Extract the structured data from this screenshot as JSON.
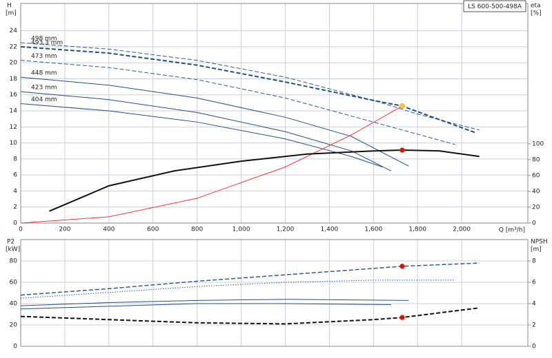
{
  "chart_data": [
    {
      "type": "line",
      "title": "LS 600-500-498A",
      "xlabel": "Q [m³/h]",
      "ylabel": "H",
      "yunit": "[m]",
      "y2label": "eta",
      "y2unit": "[%]",
      "xlim": [
        0,
        2300
      ],
      "xticks": [
        0,
        200,
        400,
        600,
        800,
        {
          "value": 1000,
          "label": "1,000"
        },
        {
          "value": 1200,
          "label": "1,200"
        },
        {
          "value": 1400,
          "label": "1,400"
        },
        {
          "value": 1600,
          "label": "1,600"
        },
        {
          "value": 1800,
          "label": "1,800"
        },
        {
          "value": 2000,
          "label": "2,000"
        }
      ],
      "ylim": [
        0,
        27.4
      ],
      "yticks": [
        0,
        2,
        4,
        6,
        8,
        10,
        12,
        14,
        16,
        18,
        20,
        22,
        24
      ],
      "y2lim": [
        0,
        277
      ],
      "y2ticks": [
        0,
        20,
        40,
        60,
        80,
        100
      ],
      "grid": true,
      "series": [
        {
          "name": "498 mm",
          "color": "#2a5a99",
          "style": "dashed",
          "width": 1,
          "x": [
            0,
            400,
            800,
            1200,
            1600,
            1800,
            2080
          ],
          "values": [
            22.5,
            21.7,
            20.3,
            18.2,
            15.3,
            13.6,
            11.6
          ]
        },
        {
          "name": "493,3 mm",
          "color": "#1f4e8c",
          "style": "dashed",
          "width": 2,
          "x": [
            0,
            400,
            800,
            1200,
            1600,
            1730,
            2060
          ],
          "values": [
            22,
            21.2,
            19.7,
            17.6,
            15.3,
            14.6,
            11.3
          ]
        },
        {
          "name": "473 mm",
          "color": "#2a5a99",
          "style": "dashed",
          "width": 1,
          "x": [
            0,
            400,
            800,
            1200,
            1600,
            1970
          ],
          "values": [
            20.3,
            19.4,
            17.9,
            15.6,
            12.6,
            9.8
          ]
        },
        {
          "name": "448 mm",
          "color": "#1f4e8c",
          "style": "solid",
          "width": 1,
          "x": [
            0,
            400,
            800,
            1200,
            1500,
            1760
          ],
          "values": [
            18.2,
            17.2,
            15.6,
            13.2,
            10.8,
            7.1
          ]
        },
        {
          "name": "423 mm",
          "color": "#1f4e8c",
          "style": "solid",
          "width": 1,
          "x": [
            0,
            400,
            800,
            1200,
            1500,
            1680
          ],
          "values": [
            16.4,
            15.4,
            13.8,
            11.4,
            9.0,
            6.5
          ]
        },
        {
          "name": "404 mm",
          "color": "#1f4e8c",
          "style": "solid",
          "width": 1,
          "x": [
            0,
            400,
            800,
            1200,
            1500,
            1640
          ],
          "values": [
            14.9,
            14.0,
            12.6,
            10.5,
            8.3,
            7.0
          ]
        },
        {
          "color": "#ff3333",
          "style": "solid",
          "width": 1,
          "x": [
            0,
            400,
            800,
            1200,
            1500,
            1730
          ],
          "values": [
            0,
            0.78,
            3.1,
            7.0,
            11.0,
            14.6
          ]
        },
        {
          "color": "#111111",
          "style": "solid",
          "width": 2,
          "axis": "y2",
          "x": [
            130,
            400,
            700,
            1000,
            1300,
            1600,
            1730,
            1900,
            2080
          ],
          "values": [
            15,
            47,
            66,
            78,
            87,
            91,
            92,
            91,
            84
          ]
        }
      ],
      "points": [
        {
          "color": "#ffcc33",
          "x": 1730,
          "value": 14.6
        },
        {
          "color": "#ff0000",
          "axis": "y2",
          "x": 1730,
          "value": 92
        }
      ]
    },
    {
      "type": "line",
      "ylabel": "P2",
      "yunit": "[kW]",
      "y2label": "NPSH",
      "y2unit": "[m]",
      "xlim": [
        0,
        2300
      ],
      "ylim": [
        0,
        100
      ],
      "yticks": [
        0,
        20,
        40,
        60,
        80
      ],
      "y2lim": [
        0,
        10
      ],
      "y2ticks": [
        0,
        2,
        4,
        6,
        8
      ],
      "grid": true,
      "series": [
        {
          "color": "#2a5a99",
          "style": "dashed",
          "width": 1.5,
          "x": [
            0,
            400,
            800,
            1200,
            1600,
            1730,
            2080
          ],
          "values": [
            48,
            54,
            61,
            67,
            73,
            75,
            78
          ]
        },
        {
          "color": "#2a5a99",
          "style": "dotted",
          "width": 1,
          "x": [
            0,
            800,
            1200,
            1600,
            1970
          ],
          "values": [
            45,
            56,
            60,
            62,
            62
          ]
        },
        {
          "color": "#1f4e8c",
          "style": "solid",
          "width": 1,
          "x": [
            0,
            400,
            800,
            1200,
            1760
          ],
          "values": [
            38,
            41,
            43,
            44,
            43
          ]
        },
        {
          "color": "#1f4e8c",
          "style": "solid",
          "width": 1,
          "x": [
            0,
            800,
            1200,
            1680
          ],
          "values": [
            35,
            40,
            40,
            39
          ]
        },
        {
          "color": "#111111",
          "style": "dashed",
          "width": 2,
          "axis": "y2",
          "x": [
            0,
            400,
            800,
            1200,
            1600,
            1730,
            2080
          ],
          "values": [
            2.8,
            2.5,
            2.2,
            2.1,
            2.5,
            2.7,
            3.6
          ]
        }
      ],
      "points": [
        {
          "color": "#ff0000",
          "x": 1730,
          "value": 75
        },
        {
          "color": "#ff0000",
          "axis": "y2",
          "x": 1730,
          "value": 2.7
        }
      ]
    }
  ]
}
